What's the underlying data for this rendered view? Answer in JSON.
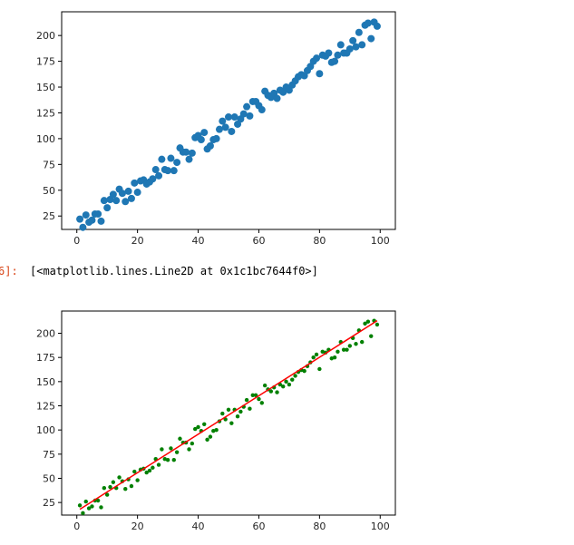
{
  "output_cell": {
    "prompt": "6]:",
    "text": "[<matplotlib.lines.Line2D at 0x1c1bc7644f0>]"
  },
  "chart_data": [
    {
      "type": "scatter",
      "title": "",
      "xlabel": "",
      "ylabel": "",
      "xlim": [
        -5,
        105
      ],
      "ylim": [
        12,
        223
      ],
      "xticks": [
        0,
        20,
        40,
        60,
        80,
        100
      ],
      "yticks": [
        25,
        50,
        75,
        100,
        125,
        150,
        175,
        200
      ],
      "marker_color": "#1f77b4",
      "grid": false,
      "x": [
        1,
        2,
        3,
        4,
        5,
        6,
        7,
        8,
        9,
        10,
        11,
        12,
        13,
        14,
        15,
        16,
        17,
        18,
        19,
        20,
        21,
        22,
        23,
        24,
        25,
        26,
        27,
        28,
        29,
        30,
        31,
        32,
        33,
        34,
        35,
        36,
        37,
        38,
        39,
        40,
        41,
        42,
        43,
        44,
        45,
        46,
        47,
        48,
        49,
        50,
        51,
        52,
        53,
        54,
        55,
        56,
        57,
        58,
        59,
        60,
        61,
        62,
        63,
        64,
        65,
        66,
        67,
        68,
        69,
        70,
        71,
        72,
        73,
        74,
        75,
        76,
        77,
        78,
        79,
        80,
        81,
        82,
        83,
        84,
        85,
        86,
        87,
        88,
        89,
        90,
        91,
        92,
        93,
        94,
        95,
        96,
        97,
        98,
        99
      ],
      "y": [
        22,
        14,
        26,
        19,
        21,
        27,
        27,
        20,
        40,
        33,
        41,
        46,
        40,
        51,
        47,
        39,
        49,
        42,
        57,
        48,
        59,
        60,
        56,
        58,
        61,
        70,
        64,
        80,
        70,
        69,
        81,
        69,
        77,
        91,
        87,
        87,
        80,
        86,
        101,
        103,
        99,
        106,
        90,
        93,
        99,
        100,
        109,
        117,
        111,
        121,
        107,
        121,
        114,
        119,
        124,
        131,
        122,
        136,
        136,
        132,
        128,
        146,
        142,
        140,
        144,
        139,
        147,
        145,
        150,
        147,
        152,
        156,
        160,
        162,
        161,
        166,
        170,
        175,
        178,
        163,
        181,
        180,
        183,
        174,
        175,
        181,
        191,
        183,
        183,
        187,
        195,
        189,
        203,
        191,
        210,
        212,
        197,
        213,
        209
      ]
    },
    {
      "type": "scatter",
      "title": "",
      "xlabel": "",
      "ylabel": "",
      "xlim": [
        -5,
        105
      ],
      "ylim": [
        12,
        223
      ],
      "xticks": [
        0,
        20,
        40,
        60,
        80,
        100
      ],
      "yticks": [
        25,
        50,
        75,
        100,
        125,
        150,
        175,
        200
      ],
      "marker_color": "#008000",
      "grid": false,
      "x": [
        1,
        2,
        3,
        4,
        5,
        6,
        7,
        8,
        9,
        10,
        11,
        12,
        13,
        14,
        15,
        16,
        17,
        18,
        19,
        20,
        21,
        22,
        23,
        24,
        25,
        26,
        27,
        28,
        29,
        30,
        31,
        32,
        33,
        34,
        35,
        36,
        37,
        38,
        39,
        40,
        41,
        42,
        43,
        44,
        45,
        46,
        47,
        48,
        49,
        50,
        51,
        52,
        53,
        54,
        55,
        56,
        57,
        58,
        59,
        60,
        61,
        62,
        63,
        64,
        65,
        66,
        67,
        68,
        69,
        70,
        71,
        72,
        73,
        74,
        75,
        76,
        77,
        78,
        79,
        80,
        81,
        82,
        83,
        84,
        85,
        86,
        87,
        88,
        89,
        90,
        91,
        92,
        93,
        94,
        95,
        96,
        97,
        98,
        99
      ],
      "y": [
        22,
        14,
        26,
        19,
        21,
        27,
        27,
        20,
        40,
        33,
        41,
        46,
        40,
        51,
        47,
        39,
        49,
        42,
        57,
        48,
        59,
        60,
        56,
        58,
        61,
        70,
        64,
        80,
        70,
        69,
        81,
        69,
        77,
        91,
        87,
        87,
        80,
        86,
        101,
        103,
        99,
        106,
        90,
        93,
        99,
        100,
        109,
        117,
        111,
        121,
        107,
        121,
        114,
        119,
        124,
        131,
        122,
        136,
        136,
        132,
        128,
        146,
        142,
        140,
        144,
        139,
        147,
        145,
        150,
        147,
        152,
        156,
        160,
        162,
        161,
        166,
        170,
        175,
        178,
        163,
        181,
        180,
        183,
        174,
        175,
        181,
        191,
        183,
        183,
        187,
        195,
        189,
        203,
        191,
        210,
        212,
        197,
        213,
        209
      ],
      "fit_line": {
        "x": [
          1,
          99
        ],
        "y": [
          18,
          213
        ],
        "color": "#ff0000"
      }
    }
  ]
}
